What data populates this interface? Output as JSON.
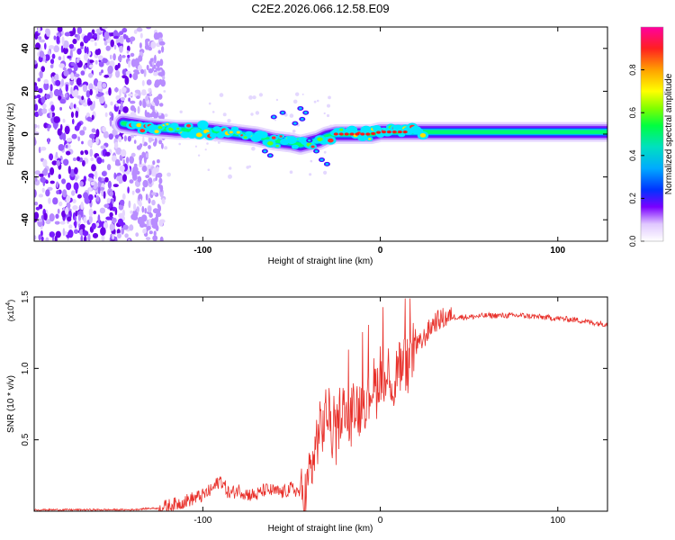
{
  "title": "C2E2.2026.066.12.58.E09",
  "chart_data": [
    {
      "type": "heatmap",
      "xlabel": "Height of straight line (km)",
      "ylabel": "Frequency (Hz)",
      "xlim": [
        -195,
        128
      ],
      "ylim": [
        -50,
        50
      ],
      "xticks": [
        -100,
        0,
        100
      ],
      "yticks": [
        -40,
        -20,
        0,
        20,
        40
      ],
      "noise_region_x": [
        -195,
        -122
      ],
      "ridge": {
        "x": [
          -145,
          -130,
          -115,
          -100,
          -90,
          -80,
          -70,
          -60,
          -50,
          -45,
          -40,
          -35,
          -30,
          -25,
          -20,
          -15,
          -10,
          -5,
          0,
          5,
          10,
          20,
          40,
          60,
          80,
          100,
          128
        ],
        "y": [
          5,
          3,
          2,
          2,
          1,
          0,
          -1,
          -3,
          -4,
          -5,
          -4,
          -3,
          -1,
          0,
          0,
          0,
          0,
          0,
          1,
          1,
          1,
          1,
          1,
          1,
          1,
          1,
          1
        ]
      },
      "colorbar": {
        "label": "Normalized spectral amplitude",
        "ticks": [
          "0.0",
          "0.2",
          "0.4",
          "0.6",
          "0.8"
        ],
        "range": [
          0,
          1
        ]
      }
    },
    {
      "type": "line",
      "xlabel": "Height of straight line (km)",
      "ylabel": "SNR (10 * v/v)",
      "yscale_label": "(x10",
      "yscale_exp": "4",
      "yscale_close": ")",
      "xlim": [
        -195,
        128
      ],
      "ylim": [
        0,
        1.5
      ],
      "xticks": [
        -100,
        0,
        100
      ],
      "yticks": [
        "0.5",
        "1.0",
        "1.5"
      ],
      "series": [
        {
          "name": "SNR",
          "color": "#e8302a",
          "x": [
            -195,
            -180,
            -160,
            -140,
            -130,
            -125,
            -115,
            -110,
            -105,
            -100,
            -95,
            -90,
            -85,
            -80,
            -75,
            -70,
            -65,
            -60,
            -55,
            -50,
            -45,
            -42,
            -40,
            -37,
            -35,
            -32,
            -30,
            -27,
            -25,
            -22,
            -20,
            -17,
            -15,
            -12,
            -10,
            -7,
            -5,
            -2,
            0,
            3,
            5,
            8,
            10,
            12,
            14,
            16,
            18,
            20,
            23,
            25,
            28,
            30,
            35,
            40,
            50,
            60,
            70,
            80,
            90,
            100,
            110,
            120,
            128
          ],
          "y": [
            0.01,
            0.01,
            0.01,
            0.01,
            0.02,
            0.02,
            0.05,
            0.07,
            0.09,
            0.11,
            0.15,
            0.22,
            0.12,
            0.15,
            0.12,
            0.11,
            0.15,
            0.14,
            0.13,
            0.16,
            0.13,
            0.1,
            0.25,
            0.4,
            0.55,
            0.6,
            0.72,
            0.55,
            0.5,
            0.75,
            0.68,
            0.6,
            0.8,
            0.7,
            0.82,
            0.75,
            0.9,
            0.85,
            1.0,
            0.85,
            1.02,
            0.82,
            1.1,
            0.95,
            1.05,
            1.0,
            1.1,
            1.15,
            1.18,
            1.22,
            1.28,
            1.32,
            1.35,
            1.36,
            1.36,
            1.37,
            1.37,
            1.37,
            1.36,
            1.35,
            1.34,
            1.32,
            1.31
          ]
        }
      ]
    }
  ]
}
